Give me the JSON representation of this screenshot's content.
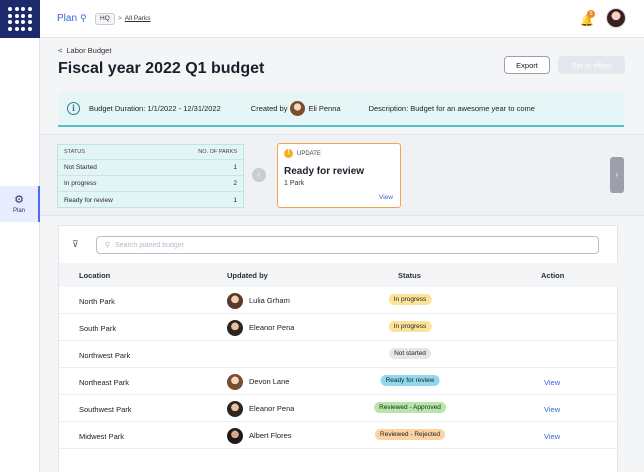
{
  "app": {
    "nav_label": "Plan",
    "hq_chip": "HQ",
    "breadcrumb": "All Parks",
    "notification_count": "5",
    "rail_label": "Plan"
  },
  "header": {
    "back_label": "Labor Budget",
    "title": "Fiscal year 2022 Q1 budget",
    "export_label": "Export",
    "effect_label": "Set in effect"
  },
  "info": {
    "duration": "Budget Duration: 1/1/2022 - 12/31/2022",
    "created_by_label": "Created by",
    "creator": "Eli Penna",
    "description": "Description: Budget for an awesome year to come"
  },
  "status_summary": {
    "col_status": "STATUS",
    "col_count": "NO. OF PARKS",
    "rows": [
      {
        "label": "Not Started",
        "count": "1"
      },
      {
        "label": "In progress",
        "count": "2"
      },
      {
        "label": "Ready for review",
        "count": "1"
      }
    ]
  },
  "update_card": {
    "header": "UPDATE",
    "title": "Ready for review",
    "subtitle": "1 Park",
    "view_label": "View"
  },
  "table": {
    "search_placeholder": "Search planed budget",
    "columns": {
      "location": "Location",
      "updated_by": "Updated by",
      "status": "Status",
      "action": "Action"
    },
    "rows": [
      {
        "location": "North Park",
        "updated_by": "Lulia Grham",
        "status": "In progress",
        "action": ""
      },
      {
        "location": "South Park",
        "updated_by": "Eleanor Pena",
        "status": "In progress",
        "action": ""
      },
      {
        "location": "Northwest Park",
        "updated_by": "",
        "status": "Not started",
        "action": ""
      },
      {
        "location": "Northeast Park",
        "updated_by": "Devon Lane",
        "status": "Ready for review",
        "action": "View"
      },
      {
        "location": "Southwest Park",
        "updated_by": "Eleanor Pena",
        "status": "Reviewed - Approved",
        "action": "View"
      },
      {
        "location": "Midwest Park",
        "updated_by": "Albert Flores",
        "status": "Reviewed - Rejected",
        "action": "View"
      }
    ]
  },
  "colors": {
    "brand": "#1c2a6b",
    "link": "#3a64d8",
    "info_accent": "#52c2c8",
    "update_border": "#f2a54a"
  },
  "icons": {
    "logo": "dots-grid-icon",
    "search": "search-icon",
    "bell": "bell-icon",
    "back": "chevron-left-icon",
    "info": "info-icon",
    "filter": "filter-icon",
    "plan": "gears-icon"
  }
}
